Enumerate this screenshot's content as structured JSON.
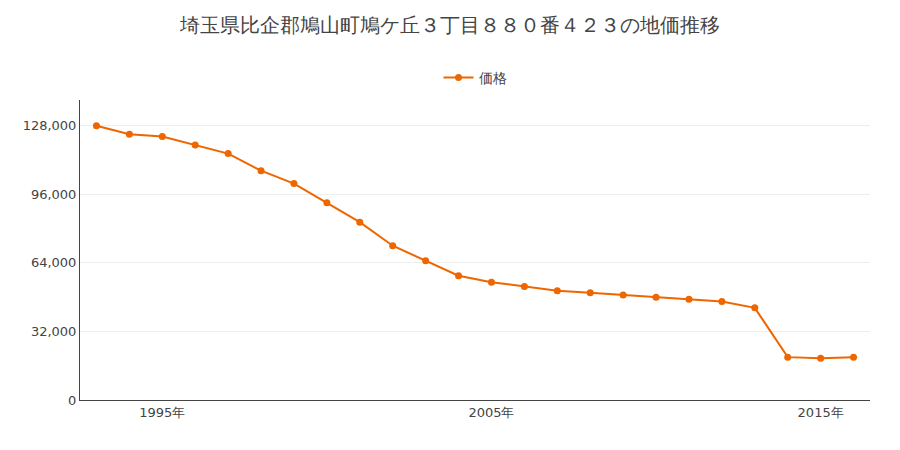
{
  "chart_data": {
    "type": "line",
    "title": "埼玉県比企郡鳩山町鳩ケ丘３丁目８８０番４２３の地価推移",
    "x": [
      1993,
      1994,
      1995,
      1996,
      1997,
      1998,
      1999,
      2000,
      2001,
      2002,
      2003,
      2004,
      2005,
      2006,
      2007,
      2008,
      2009,
      2010,
      2011,
      2012,
      2013,
      2014,
      2015,
      2016
    ],
    "series": [
      {
        "name": "価格",
        "color": "#ee6600",
        "marker": "circle",
        "values": [
          128000,
          124000,
          123000,
          119000,
          115000,
          107000,
          101000,
          92000,
          83000,
          72000,
          65000,
          58000,
          55000,
          53000,
          51000,
          50000,
          49000,
          48000,
          47000,
          46000,
          43000,
          20000,
          19500,
          20000
        ]
      }
    ],
    "xlim": [
      1992.5,
      2016.5
    ],
    "xticks": [
      {
        "value": 1995,
        "label": "1995年"
      },
      {
        "value": 2005,
        "label": "2005年"
      },
      {
        "value": 2015,
        "label": "2015年"
      }
    ],
    "ylim": [
      0,
      140000
    ],
    "yticks": [
      0,
      {
        "value": 32000,
        "label": "32,000"
      },
      {
        "value": 64000,
        "label": "64,000"
      },
      {
        "value": 96000,
        "label": "96,000"
      },
      {
        "value": 128000,
        "label": "128,000"
      }
    ],
    "grid": true,
    "legend": "top"
  }
}
